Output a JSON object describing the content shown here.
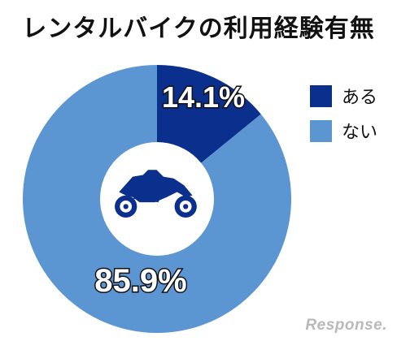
{
  "chart_data": {
    "type": "pie",
    "title": "レンタルバイクの利用経験有無",
    "slices": [
      {
        "label": "ある",
        "value": 14.1,
        "display": "14.1%",
        "color": "#0b2f8c"
      },
      {
        "label": "ない",
        "value": 85.9,
        "display": "85.9%",
        "color": "#5b95d2"
      }
    ],
    "legend_position": "right",
    "center_icon": "motorcycle-icon"
  },
  "legend": {
    "items": [
      {
        "label": "ある",
        "color": "#0b2f8c"
      },
      {
        "label": "ない",
        "color": "#5b95d2"
      }
    ]
  },
  "watermark": "Response."
}
